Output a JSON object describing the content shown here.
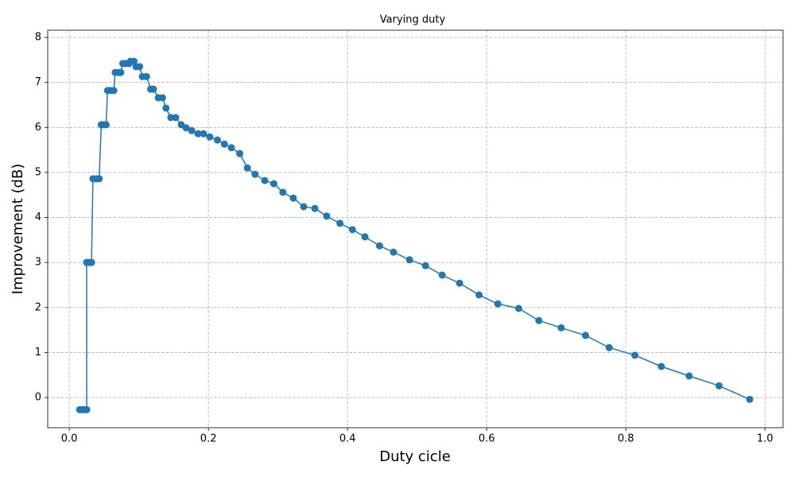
{
  "chart_data": {
    "type": "line",
    "title": "Varying duty",
    "x_label": "Duty cicle",
    "y_label": "Improvement (dB)",
    "color": "#1f77b4",
    "grid": true,
    "x": [
      0.0149,
      0.0183,
      0.0217,
      0.0251,
      0.025,
      0.029,
      0.032,
      0.034,
      0.039,
      0.043,
      0.046,
      0.049,
      0.053,
      0.055,
      0.059,
      0.064,
      0.066,
      0.071,
      0.074,
      0.077,
      0.081,
      0.086,
      0.088,
      0.093,
      0.096,
      0.101,
      0.105,
      0.111,
      0.117,
      0.121,
      0.128,
      0.134,
      0.139,
      0.146,
      0.153,
      0.161,
      0.168,
      0.176,
      0.185,
      0.193,
      0.202,
      0.213,
      0.223,
      0.233,
      0.245,
      0.256,
      0.267,
      0.281,
      0.294,
      0.307,
      0.322,
      0.337,
      0.353,
      0.37,
      0.389,
      0.407,
      0.425,
      0.446,
      0.466,
      0.489,
      0.512,
      0.536,
      0.561,
      0.589,
      0.616,
      0.646,
      0.675,
      0.707,
      0.742,
      0.776,
      0.813,
      0.851,
      0.891,
      0.934,
      0.978
    ],
    "values": [
      -0.27,
      -0.27,
      -0.27,
      -0.27,
      3.0,
      3.0,
      3.0,
      4.86,
      4.86,
      4.86,
      6.06,
      6.06,
      6.06,
      6.82,
      6.82,
      6.82,
      7.22,
      7.22,
      7.22,
      7.42,
      7.42,
      7.42,
      7.47,
      7.47,
      7.35,
      7.35,
      7.13,
      7.13,
      6.85,
      6.85,
      6.66,
      6.66,
      6.43,
      6.22,
      6.22,
      6.06,
      5.99,
      5.93,
      5.86,
      5.86,
      5.79,
      5.72,
      5.63,
      5.55,
      5.42,
      5.1,
      4.96,
      4.82,
      4.75,
      4.56,
      4.43,
      4.24,
      4.2,
      4.03,
      3.87,
      3.73,
      3.57,
      3.37,
      3.23,
      3.06,
      2.93,
      2.72,
      2.54,
      2.28,
      2.08,
      1.98,
      1.71,
      1.55,
      1.38,
      1.11,
      0.94,
      0.69,
      0.48,
      0.26,
      -0.04
    ],
    "xlim": [
      -0.031,
      1.026
    ],
    "ylim": [
      -0.67,
      8.16
    ],
    "xticks": [
      {
        "value": 0,
        "label": "0.0"
      },
      0.2,
      0.4,
      0.6,
      0.8,
      {
        "value": 1,
        "label": "1.0"
      }
    ],
    "yticks": [
      0,
      1,
      2,
      3,
      4,
      5,
      6,
      7,
      8
    ]
  }
}
